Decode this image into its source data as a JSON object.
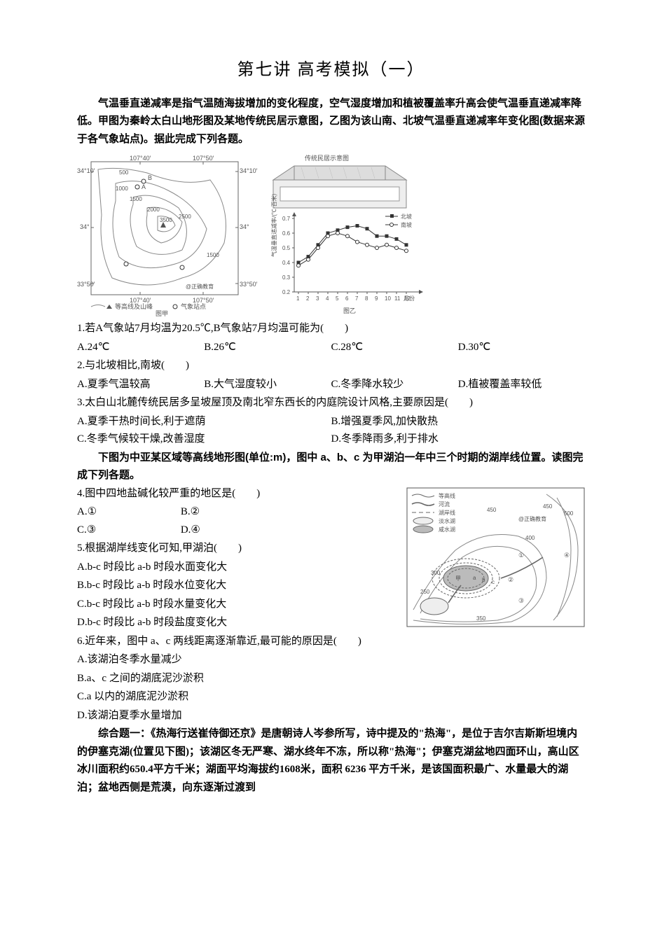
{
  "title": "第七讲    高考模拟（一）",
  "intro": "气温垂直递减率是指气温随海拔增加的变化程度，空气湿度增加和植被覆盖率升高会使气温垂直递减率降低。甲图为秦岭太白山地形图及某地传统民居示意图，乙图为该山南、北坡气温垂直递减率年变化图(数据来源于各气象站点)。据此完成下列各题。",
  "fig1": {
    "map_label": "图甲",
    "chart_label": "图乙",
    "house_label": "传统民居示意图",
    "legend_contour": "等高线及山峰",
    "legend_station": "气象站点",
    "legend_north": "北坡",
    "legend_south": "南坡",
    "watermark": "@正确教育",
    "lon1": "107°40′",
    "lon2": "107°50′",
    "lat1": "34°10′",
    "lat2": "34°",
    "lat3": "33°50′",
    "contours": [
      "500",
      "1000",
      "1500",
      "2000",
      "2500",
      "3500",
      "1500"
    ],
    "station_a": "A",
    "station_b": "B",
    "y_label": "气温垂直递减率/(℃·百米)",
    "y_ticks": [
      "0.2",
      "0.3",
      "0.4",
      "0.5",
      "0.6",
      "0.7"
    ],
    "x_ticks": [
      "1",
      "2",
      "3",
      "4",
      "5",
      "6",
      "7",
      "8",
      "9",
      "10",
      "11",
      "12"
    ],
    "x_label": "月份",
    "north_vals": [
      0.4,
      0.44,
      0.52,
      0.6,
      0.62,
      0.64,
      0.65,
      0.63,
      0.58,
      0.58,
      0.56,
      0.52
    ],
    "south_vals": [
      0.38,
      0.42,
      0.5,
      0.58,
      0.6,
      0.58,
      0.54,
      0.52,
      0.5,
      0.52,
      0.5,
      0.48
    ]
  },
  "q1": {
    "stem": "1.若A气象站7月均温为20.5℃,B气象站7月均温可能为(　　)",
    "opts": [
      "A.24℃",
      "B.26℃",
      "C.28℃",
      "D.30℃"
    ]
  },
  "q2": {
    "stem": "2.与北坡相比,南坡(　　)",
    "opts": [
      "A.夏季气温较高",
      "B.大气湿度较小",
      "C.冬季降水较少",
      "D.植被覆盖率较低"
    ]
  },
  "q3": {
    "stem": "3.太白山北麓传统民居多呈坡屋顶及南北窄东西长的内庭院设计风格,主要原因是(　　)",
    "opts": [
      "A.夏季干热时间长,利于遮荫",
      "B.增强夏季风,加快散热",
      "C.冬季气候较干燥,改善湿度",
      "D.冬季降雨多,利于排水"
    ]
  },
  "intro2": "下图为中亚某区域等高线地形图(单位:m)，图中 a、b、c 为甲湖泊一年中三个时期的湖岸线位置。读图完成下列各题。",
  "q4": {
    "stem": "4.图中四地盐碱化较严重的地区是(　　)",
    "opts": [
      "A.①",
      "B.②",
      "C.③",
      "D.④"
    ]
  },
  "q5": {
    "stem": "5.根据湖岸线变化可知,甲湖泊(　　)",
    "opts": [
      "A.b-c 时段比 a-b 时段水面变化大",
      "B.b-c 时段比 a-b 时段水位变化大",
      "C.b-c 时段比 a-b 时段水量变化大",
      "D.b-c 时段比 a-b 时段盐度变化大"
    ]
  },
  "q6": {
    "stem": "6.近年来，图中 a、c 两线距离逐渐靠近,最可能的原因是(　　)",
    "opts": [
      "A.该湖泊冬季水量减少",
      "B.a、c 之间的湖底泥沙淤积",
      "C.a 以内的湖底泥沙淤积",
      "D.该湖泊夏季水量增加"
    ]
  },
  "fig2": {
    "legend": {
      "contour": "等高线",
      "river": "河流",
      "lakeshore": "湖岸线",
      "fresh": "淡水湖",
      "salt": "咸水湖"
    },
    "labels": {
      "watermark": "@正确教育",
      "jia": "甲",
      "a": "a",
      "b": "b",
      "c": "c",
      "p1": "①",
      "p2": "②",
      "p3": "③",
      "p4": "④",
      "c450a": "450",
      "c450b": "450",
      "c500": "500",
      "c400": "400",
      "c350": "350",
      "c300": "300",
      "c250": "250"
    }
  },
  "essay_intro": "综合题一：《热海行送崔侍御还京》是唐朝诗人岑参所写，诗中提及的\"热海\"，是位于吉尔吉斯斯坦境内的伊塞克湖(位置见下图)；该湖区冬无严寒、湖水终年不冻，所以称\"热海\"；伊塞克湖盆地四面环山，高山区冰川面积约650.4平方千米；湖面平均海拔约1608米，面积 6236 平方千米，是该国面积最广、水量最大的湖泊；盆地西侧是荒漠，向东逐渐过渡到"
}
